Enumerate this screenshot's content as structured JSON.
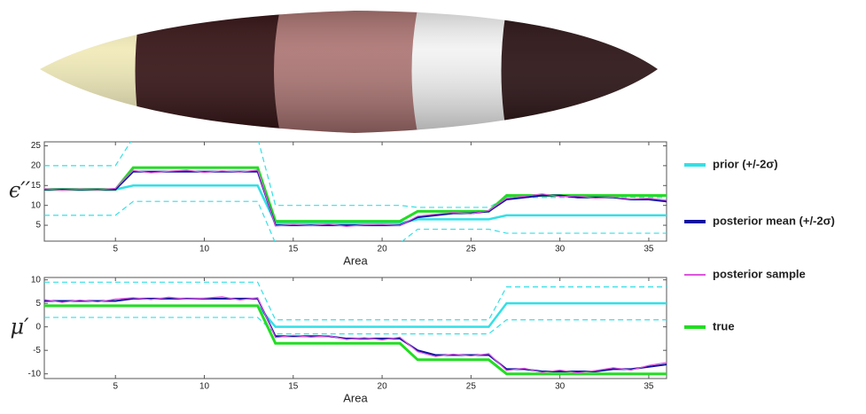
{
  "chart_data": [
    {
      "type": "line",
      "ylabel": "ϵ′′",
      "xlabel": "Area",
      "x": [
        1,
        2,
        3,
        4,
        5,
        6,
        7,
        8,
        9,
        10,
        11,
        12,
        13,
        14,
        15,
        16,
        17,
        18,
        19,
        20,
        21,
        22,
        23,
        24,
        25,
        26,
        27,
        28,
        29,
        30,
        31,
        32,
        33,
        34,
        35,
        36
      ],
      "xlim": [
        1,
        36
      ],
      "xticks": [
        5,
        10,
        15,
        20,
        25,
        30,
        35
      ],
      "ylim": [
        1,
        26
      ],
      "yticks": [
        5,
        10,
        15,
        20,
        25
      ],
      "series": [
        {
          "name": "prior (+/-2σ)",
          "color": "#33e0e6",
          "values": [
            14,
            14,
            14,
            14,
            14,
            15,
            15,
            15,
            15,
            15,
            15,
            15,
            15,
            5.5,
            5.5,
            5.5,
            5.5,
            5.5,
            5.5,
            5.5,
            5.5,
            6.5,
            6.5,
            6.5,
            6.5,
            6.5,
            7.5,
            7.5,
            7.5,
            7.5,
            7.5,
            7.5,
            7.5,
            7.5,
            7.5,
            7.5
          ],
          "upper": [
            20,
            20,
            20,
            20,
            20,
            27,
            27,
            27,
            27,
            27,
            27,
            27,
            27,
            10,
            10,
            10,
            10,
            10,
            10,
            10,
            10,
            9.5,
            9.5,
            9.5,
            9.5,
            9.5,
            12,
            12,
            12,
            12,
            12,
            12,
            12,
            12,
            12,
            12
          ],
          "lower": [
            7.5,
            7.5,
            7.5,
            7.5,
            7.5,
            11,
            11,
            11,
            11,
            11,
            11,
            11,
            11,
            0.5,
            0.5,
            0.5,
            0.5,
            0.5,
            0.5,
            0.5,
            0.5,
            4,
            4,
            4,
            4,
            4,
            3,
            3,
            3,
            3,
            3,
            3,
            3,
            3,
            3,
            3
          ]
        },
        {
          "name": "posterior mean (+/-2σ)",
          "color": "#1010a0",
          "values": [
            14,
            14,
            14,
            14,
            14,
            18.5,
            18.5,
            18.5,
            18.5,
            18.5,
            18.5,
            18.5,
            18.5,
            5,
            5,
            5,
            5,
            5,
            5,
            5,
            5,
            7,
            7.5,
            8,
            8,
            8.5,
            11.5,
            12,
            12.5,
            12.5,
            12,
            12,
            12,
            11.5,
            11.5,
            11
          ]
        },
        {
          "name": "posterior sample",
          "color": "#dd55dd",
          "values": [
            14.2,
            13.8,
            14.1,
            13.9,
            14.3,
            18.8,
            18.2,
            18.6,
            18.9,
            18.3,
            18.7,
            18.4,
            18.9,
            4.8,
            5.2,
            4.9,
            5.3,
            4.7,
            5.1,
            5.2,
            4.9,
            7.3,
            7.8,
            8.2,
            7.9,
            8.7,
            11.8,
            12.3,
            12.9,
            12.2,
            12.4,
            11.8,
            12.1,
            11.6,
            11.8,
            11.3
          ]
        },
        {
          "name": "true",
          "color": "#22dd22",
          "values": [
            14,
            14,
            14,
            14,
            14,
            19.5,
            19.5,
            19.5,
            19.5,
            19.5,
            19.5,
            19.5,
            19.5,
            6,
            6,
            6,
            6,
            6,
            6,
            6,
            6,
            8.5,
            8.5,
            8.5,
            8.5,
            8.5,
            12.5,
            12.5,
            12.5,
            12.5,
            12.5,
            12.5,
            12.5,
            12.5,
            12.5,
            12.5
          ]
        }
      ]
    },
    {
      "type": "line",
      "ylabel": "μ′",
      "xlabel": "Area",
      "x": [
        1,
        2,
        3,
        4,
        5,
        6,
        7,
        8,
        9,
        10,
        11,
        12,
        13,
        14,
        15,
        16,
        17,
        18,
        19,
        20,
        21,
        22,
        23,
        24,
        25,
        26,
        27,
        28,
        29,
        30,
        31,
        32,
        33,
        34,
        35,
        36
      ],
      "xlim": [
        1,
        36
      ],
      "xticks": [
        5,
        10,
        15,
        20,
        25,
        30,
        35
      ],
      "ylim": [
        -11,
        10.5
      ],
      "yticks": [
        -10,
        -5,
        0,
        5,
        10
      ],
      "series": [
        {
          "color": "#33e0e6",
          "values": [
            4.5,
            4.5,
            4.5,
            4.5,
            4.5,
            4.5,
            4.5,
            4.5,
            4.5,
            4.5,
            4.5,
            4.5,
            4.5,
            0,
            0,
            0,
            0,
            0,
            0,
            0,
            0,
            0,
            0,
            0,
            0,
            0,
            5,
            5,
            5,
            5,
            5,
            5,
            5,
            5,
            5,
            5
          ],
          "upper": [
            9.5,
            9.5,
            9.5,
            9.5,
            9.5,
            9.5,
            9.5,
            9.5,
            9.5,
            9.5,
            9.5,
            9.5,
            9.5,
            1.5,
            1.5,
            1.5,
            1.5,
            1.5,
            1.5,
            1.5,
            1.5,
            1.5,
            1.5,
            1.5,
            1.5,
            1.5,
            8.5,
            8.5,
            8.5,
            8.5,
            8.5,
            8.5,
            8.5,
            8.5,
            8.5,
            8.5
          ],
          "lower": [
            2,
            2,
            2,
            2,
            2,
            2,
            2,
            2,
            2,
            2,
            2,
            2,
            2,
            -1.5,
            -1.5,
            -1.5,
            -1.5,
            -1.5,
            -1.5,
            -1.5,
            -1.5,
            -1.5,
            -1.5,
            -1.5,
            -1.5,
            -1.5,
            1.5,
            1.5,
            1.5,
            1.5,
            1.5,
            1.5,
            1.5,
            1.5,
            1.5,
            1.5
          ]
        },
        {
          "color": "#1010a0",
          "values": [
            5.5,
            5.5,
            5.5,
            5.5,
            5.5,
            6,
            6,
            6,
            6,
            6,
            6,
            6,
            6,
            -2,
            -2,
            -2,
            -2,
            -2.5,
            -2.5,
            -2.5,
            -2.5,
            -5,
            -6,
            -6,
            -6,
            -6,
            -9,
            -9,
            -9.5,
            -9.5,
            -9.5,
            -9.5,
            -9,
            -9,
            -8.5,
            -8
          ]
        },
        {
          "color": "#dd55dd",
          "values": [
            5.8,
            5.2,
            5.7,
            5.3,
            5.9,
            6.2,
            5.8,
            6.3,
            5.9,
            6.1,
            6.4,
            5.7,
            6.2,
            -2.3,
            -1.8,
            -2.2,
            -1.9,
            -2.7,
            -2.3,
            -2.8,
            -2.2,
            -5.3,
            -6.3,
            -5.8,
            -6.2,
            -5.7,
            -9.3,
            -8.8,
            -9.7,
            -9.2,
            -9.8,
            -9.3,
            -8.7,
            -9.2,
            -8.2,
            -7.6
          ]
        },
        {
          "color": "#22dd22",
          "values": [
            4.5,
            4.5,
            4.5,
            4.5,
            4.5,
            4.5,
            4.5,
            4.5,
            4.5,
            4.5,
            4.5,
            4.5,
            4.5,
            -3.5,
            -3.5,
            -3.5,
            -3.5,
            -3.5,
            -3.5,
            -3.5,
            -3.5,
            -7,
            -7,
            -7,
            -7,
            -7,
            -10,
            -10,
            -10,
            -10,
            -10,
            -10,
            -10,
            -10,
            -10,
            -10
          ]
        }
      ]
    }
  ]
}
